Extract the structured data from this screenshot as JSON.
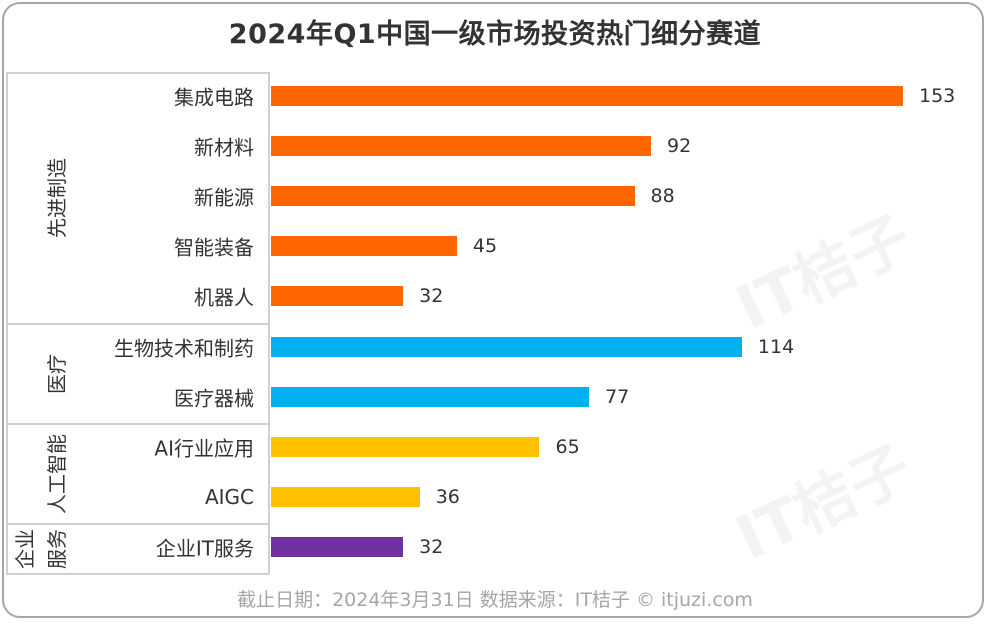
{
  "chart_data": {
    "type": "bar",
    "orientation": "horizontal",
    "title": "2024年Q1中国一级市场投资热门细分赛道",
    "categories": [
      "集成电路",
      "新材料",
      "新能源",
      "智能装备",
      "机器人",
      "生物技术和制药",
      "医疗器械",
      "AI行业应用",
      "AIGC",
      "企业IT服务"
    ],
    "values": [
      153,
      92,
      88,
      45,
      32,
      114,
      77,
      65,
      36,
      32
    ],
    "groups": [
      {
        "label": "先进制造",
        "count": 5,
        "color": "#FF6600"
      },
      {
        "label": "医疗",
        "count": 2,
        "color": "#00B0F0"
      },
      {
        "label": "人工智能",
        "count": 2,
        "color": "#FFC000"
      },
      {
        "label": "企业\n服务",
        "count": 1,
        "color": "#7030A0"
      }
    ],
    "xlim": [
      0,
      160
    ],
    "grid": false,
    "data_labels": true
  },
  "footer": "截止日期：2024年3月31日    数据来源：IT桔子 © itjuzi.com",
  "watermark": "IT桔子 ITJUZI.COM"
}
